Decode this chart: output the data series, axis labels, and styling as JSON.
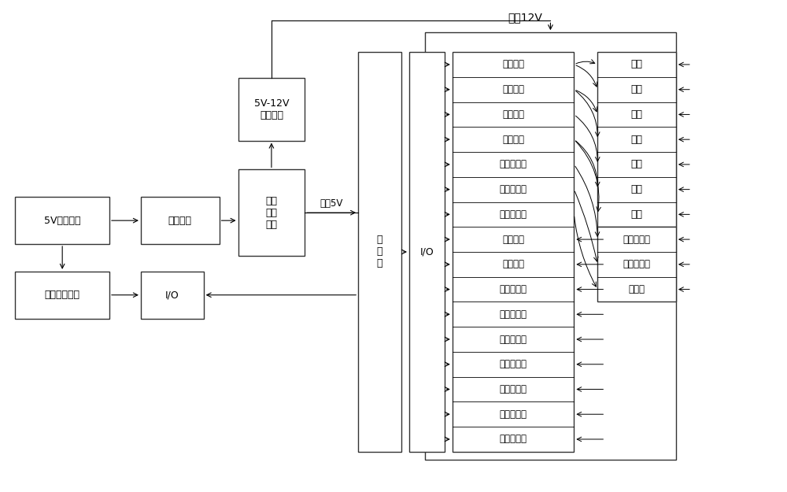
{
  "bg_color": "#ffffff",
  "border_color": "#333333",
  "text_color": "#000000",
  "font_size": 9,
  "title_12v": "稳压12V",
  "power5v_label": "5V移动电源",
  "power_sw_label": "电源开关",
  "noise_label": "噪声\n干扰\n处理",
  "boost_label": "5V-12V\n升压电路",
  "elec_det_label": "电量检测模块",
  "io_left_label": "I/O",
  "mcu_label": "单\n片\n机",
  "io_right_label": "I/O",
  "reg5v_label": "稳压5V",
  "io_items": [
    "驱动芯片",
    "驱动芯片",
    "驱动芯片",
    "驱动芯片",
    "第一继电器",
    "第二继电器",
    "第三继电器",
    "准备开关",
    "封口开关",
    "准备指示灯",
    "封口指示灯",
    "故障指示灯",
    "电量指示灯",
    "电容传感器",
    "霍尔传感器",
    "电感传感器"
  ],
  "motor_items": [
    "电机",
    "电机",
    "电机",
    "电机",
    "电机",
    "电机",
    "电机"
  ],
  "other_items": [
    "真空发生器",
    "真空发生器",
    "蜂鸣器"
  ]
}
